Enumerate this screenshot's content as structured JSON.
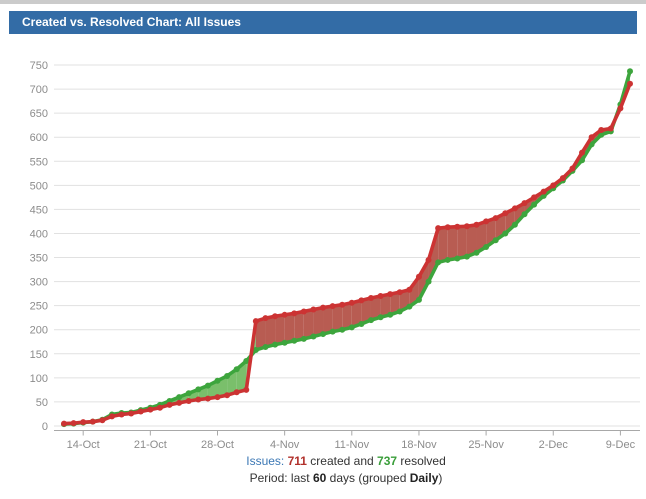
{
  "header": {
    "title": "Created vs. Resolved Chart: All Issues"
  },
  "colors": {
    "header_bg": "#336CA6",
    "created_line": "#cc3333",
    "created_fill": "#b85c52",
    "resolved_line": "#3da53d",
    "resolved_fill": "#7abf6b",
    "grid": "#e1e1e1",
    "axis": "#a8a8a8",
    "axis_text": "#8c8c8c"
  },
  "footer": {
    "issues_label": "Issues:",
    "created_count": "711",
    "created_suffix": "created and",
    "resolved_count": "737",
    "resolved_suffix": "resolved",
    "period_prefix": "Period: last",
    "period_days": "60",
    "period_mid": "days (grouped",
    "period_group": "Daily",
    "period_close": ")"
  },
  "chart_data": {
    "type": "area",
    "title": "Created vs. Resolved Chart: All Issues",
    "grouping": "Daily",
    "period_days": 60,
    "ylim": [
      0,
      750
    ],
    "y_tick_step": 50,
    "grid": true,
    "x_tick_labels": [
      "14-Oct",
      "21-Oct",
      "28-Oct",
      "4-Nov",
      "11-Nov",
      "18-Nov",
      "25-Nov",
      "2-Dec",
      "9-Dec"
    ],
    "x_tick_indices": [
      2,
      9,
      16,
      23,
      30,
      37,
      44,
      51,
      58
    ],
    "series": [
      {
        "name": "Created",
        "color": "#cc3333",
        "fill": "#b85c52",
        "total": 711,
        "values": [
          5,
          6,
          8,
          9,
          12,
          20,
          24,
          26,
          30,
          34,
          38,
          44,
          48,
          52,
          55,
          57,
          60,
          64,
          70,
          75,
          218,
          224,
          228,
          231,
          234,
          238,
          242,
          246,
          249,
          252,
          256,
          261,
          266,
          270,
          274,
          278,
          283,
          310,
          345,
          411,
          413,
          414,
          415,
          418,
          425,
          432,
          442,
          452,
          463,
          475,
          487,
          500,
          515,
          535,
          568,
          600,
          615,
          618,
          660,
          711
        ]
      },
      {
        "name": "Resolved",
        "color": "#3da53d",
        "fill": "#7abf6b",
        "total": 737,
        "values": [
          4,
          5,
          7,
          9,
          13,
          24,
          27,
          28,
          33,
          38,
          44,
          52,
          60,
          68,
          76,
          84,
          94,
          104,
          118,
          135,
          158,
          164,
          169,
          173,
          177,
          181,
          186,
          191,
          196,
          200,
          205,
          212,
          220,
          226,
          231,
          238,
          248,
          262,
          300,
          340,
          345,
          348,
          352,
          360,
          372,
          386,
          400,
          418,
          440,
          460,
          478,
          494,
          510,
          530,
          552,
          585,
          605,
          612,
          668,
          737
        ]
      }
    ]
  }
}
